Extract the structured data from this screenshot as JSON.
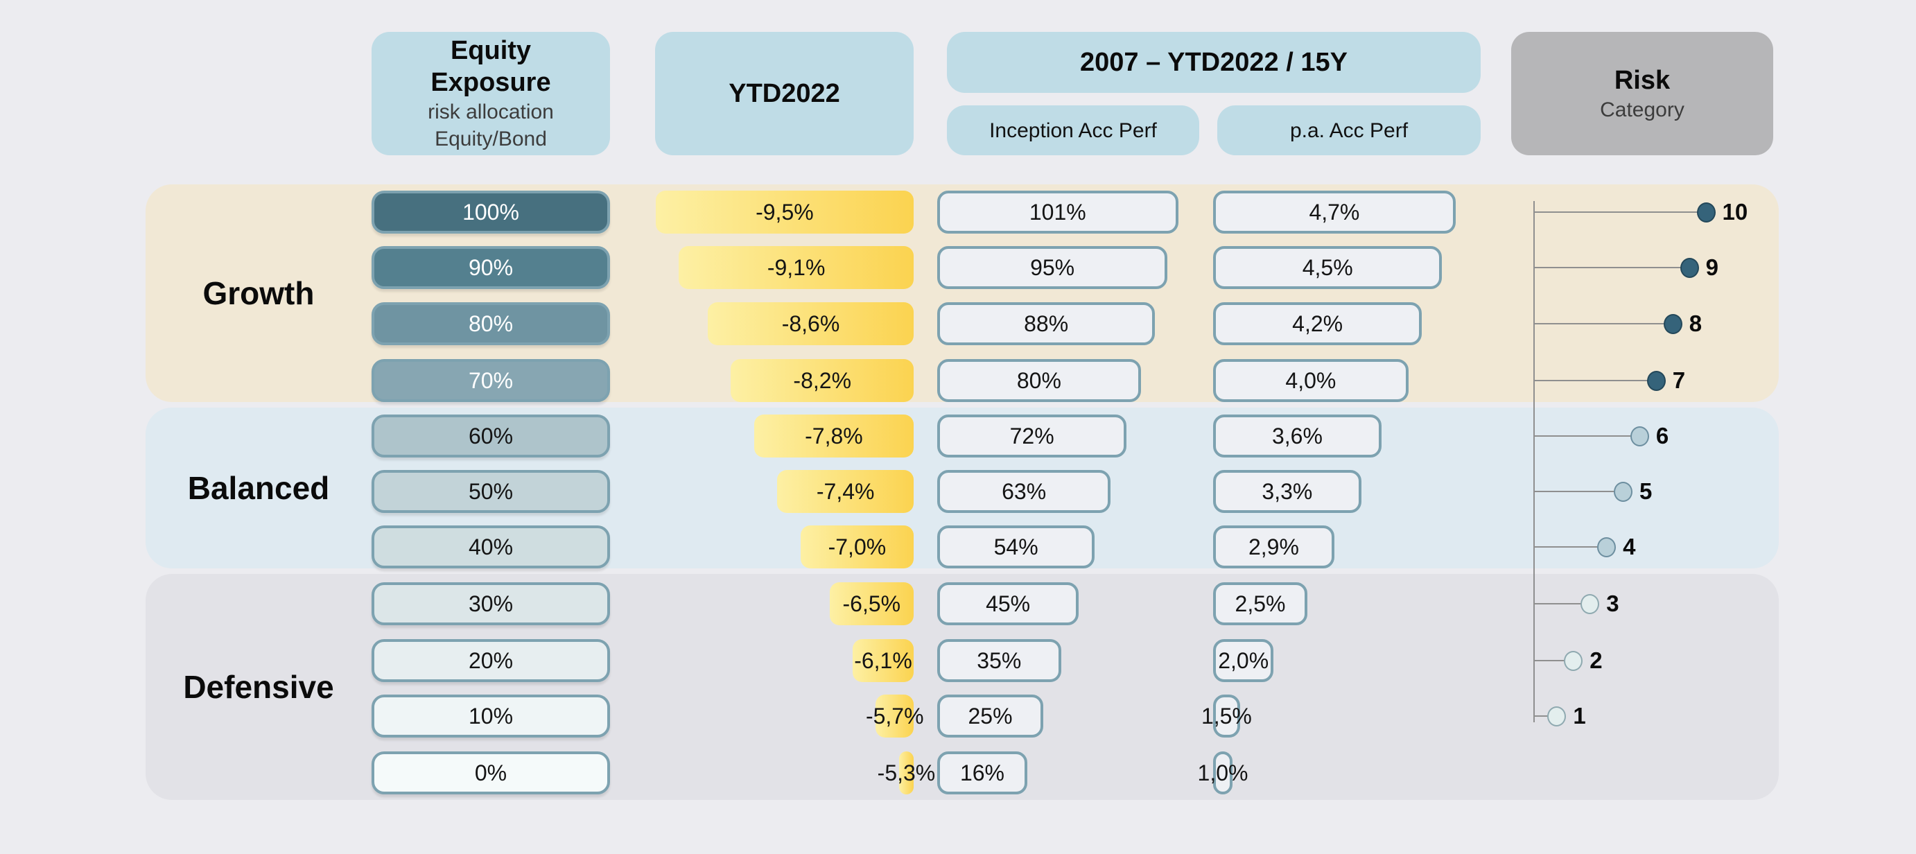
{
  "header": {
    "equity_title_line1": "Equity",
    "equity_title_line2": "Exposure",
    "equity_sub_line1": "risk allocation",
    "equity_sub_line2": "Equity/Bond",
    "ytd_title": "YTD2022",
    "period_title": "2007 – YTD2022 / 15Y",
    "inception_label": "Inception Acc Perf",
    "pa_label": "p.a. Acc Perf",
    "risk_title": "Risk",
    "risk_sub": "Category"
  },
  "colors": {
    "page_bg": "#ececf0",
    "header_blue": "#bfdce6",
    "header_gray": "#b6b6b8",
    "header_sub_text": "#3c3c3c",
    "band_growth": "#f1e8d5",
    "band_balanced": "#dfeaf1",
    "band_defensive": "#e2e2e7",
    "bar_border": "#7da2b0",
    "box_fill": "#eef0f4",
    "ytd_grad_left": "#fdf0a4",
    "ytd_grad_right": "#fbd350",
    "axis_gray": "#8f8f8f",
    "risk_dot_growth": "#35637a",
    "risk_dot_growth_border": "#24485a",
    "risk_dot_balanced": "#b9d0d9",
    "risk_dot_balanced_border": "#6d8fa0",
    "risk_dot_defensive": "#e3eeee",
    "risk_dot_defensive_border": "#8fa9b0",
    "equity_colors": [
      "#47707f",
      "#54808f",
      "#6f94a2",
      "#87a6b2",
      "#aec4cb",
      "#c2d3d8",
      "#cfdde0",
      "#dce6e8",
      "#e7eef0",
      "#eff5f6",
      "#f5fafa"
    ],
    "equity_text_colors": [
      "#ffffff",
      "#ffffff",
      "#ffffff",
      "#ffffff",
      "#141414",
      "#141414",
      "#141414",
      "#141414",
      "#141414",
      "#141414",
      "#141414"
    ]
  },
  "chart_data": {
    "type": "table",
    "columns": [
      "Equity Exposure (risk allocation Equity/Bond)",
      "YTD2022",
      "2007 – YTD2022 / 15Y Inception Acc Perf",
      "2007 – YTD2022 / 15Y p.a. Acc Perf",
      "Risk Category"
    ],
    "sections": [
      {
        "label": "Growth",
        "key": "growth",
        "rows": [
          {
            "equity": "100%",
            "ytd": "-9,5%",
            "inception": "101%",
            "pa": "4,7%",
            "risk": 10
          },
          {
            "equity": "90%",
            "ytd": "-9,1%",
            "inception": "95%",
            "pa": "4,5%",
            "risk": 9
          },
          {
            "equity": "80%",
            "ytd": "-8,6%",
            "inception": "88%",
            "pa": "4,2%",
            "risk": 8
          },
          {
            "equity": "70%",
            "ytd": "-8,2%",
            "inception": "80%",
            "pa": "4,0%",
            "risk": 7
          }
        ]
      },
      {
        "label": "Balanced",
        "key": "balanced",
        "rows": [
          {
            "equity": "60%",
            "ytd": "-7,8%",
            "inception": "72%",
            "pa": "3,6%",
            "risk": 6
          },
          {
            "equity": "50%",
            "ytd": "-7,4%",
            "inception": "63%",
            "pa": "3,3%",
            "risk": 5
          },
          {
            "equity": "40%",
            "ytd": "-7,0%",
            "inception": "54%",
            "pa": "2,9%",
            "risk": 4
          }
        ]
      },
      {
        "label": "Defensive",
        "key": "defensive",
        "rows": [
          {
            "equity": "30%",
            "ytd": "-6,5%",
            "inception": "45%",
            "pa": "2,5%",
            "risk": 3
          },
          {
            "equity": "20%",
            "ytd": "-6,1%",
            "inception": "35%",
            "pa": "2,0%",
            "risk": 2
          },
          {
            "equity": "10%",
            "ytd": "-5,7%",
            "inception": "25%",
            "pa": "1,5%",
            "risk": 1
          },
          {
            "equity": "0%",
            "ytd": "-5,3%",
            "inception": "16%",
            "pa": "1,0%",
            "risk": null
          }
        ]
      }
    ]
  }
}
